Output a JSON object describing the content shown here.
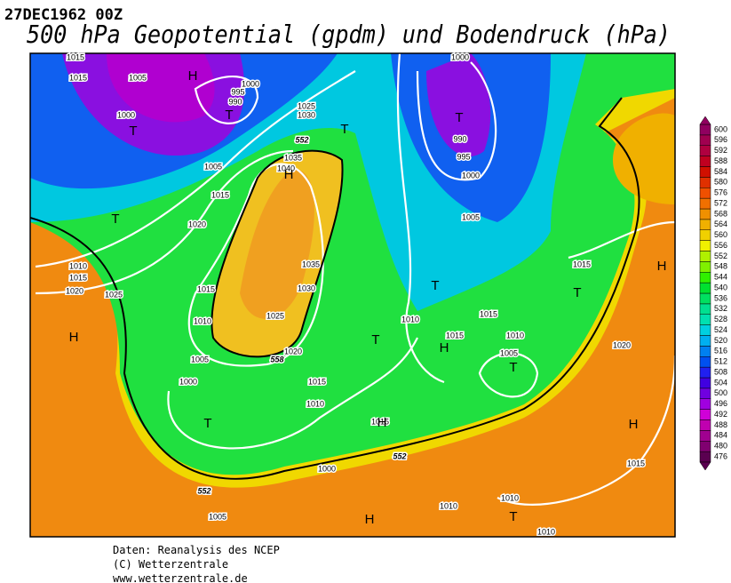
{
  "header": {
    "date": "27DEC1962 00Z",
    "title": "500 hPa Geopotential (gpdm) und Bodendruck (hPa)"
  },
  "colorbar": {
    "ticks": [
      476,
      480,
      484,
      488,
      492,
      496,
      500,
      504,
      508,
      512,
      516,
      520,
      524,
      528,
      532,
      536,
      540,
      544,
      548,
      552,
      556,
      560,
      564,
      568,
      572,
      576,
      580,
      584,
      588,
      592,
      596,
      600
    ],
    "colors": [
      "#5a0050",
      "#800070",
      "#a00090",
      "#c000b0",
      "#d000d8",
      "#a000e0",
      "#7000e0",
      "#4000e0",
      "#2020f0",
      "#0050f0",
      "#0080f0",
      "#00b0f0",
      "#00d0e0",
      "#00e0b0",
      "#00e090",
      "#00e060",
      "#00e030",
      "#30f000",
      "#80f000",
      "#b0f000",
      "#f0f000",
      "#f0d000",
      "#f0b000",
      "#f09000",
      "#f07000",
      "#f05000",
      "#e03000",
      "#d01000",
      "#c00020",
      "#b00040",
      "#a00050",
      "#900060"
    ]
  },
  "map": {
    "pressure_labels": [
      1015,
      1015,
      1005,
      1000,
      1000,
      995,
      990,
      1025,
      1030,
      1035,
      1040,
      1005,
      1015,
      1020,
      1010,
      1015,
      1020,
      1025,
      1015,
      1010,
      1035,
      1030,
      1025,
      1020,
      1005,
      1000,
      1015,
      1010,
      1010,
      1015,
      1015,
      1010,
      1005,
      1015,
      1020,
      1015,
      1010,
      1010,
      1010,
      1000,
      1005,
      1015,
      1000,
      990,
      995,
      1000,
      1005
    ],
    "height_labels": [
      552,
      558,
      552,
      552
    ],
    "centers": [
      "H",
      "T",
      "T",
      "T",
      "H",
      "T",
      "T",
      "H",
      "T",
      "H",
      "T",
      "T",
      "H",
      "T",
      "T",
      "H",
      "H",
      "H",
      "T"
    ]
  },
  "footer": {
    "lines": [
      "Daten: Reanalysis des NCEP",
      "(C) Wetterzentrale",
      "www.wetterzentrale.de"
    ]
  }
}
